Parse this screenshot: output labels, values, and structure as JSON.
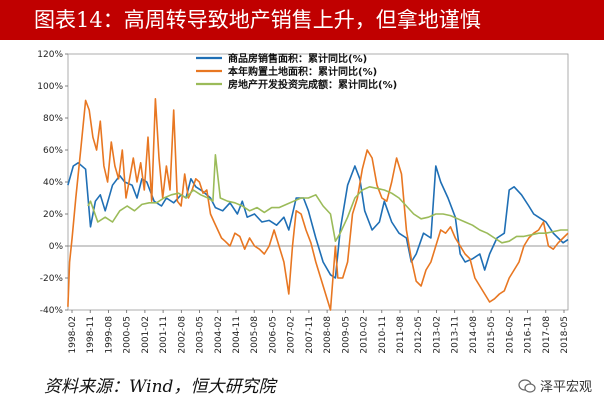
{
  "title": "图表14：高周转导致地产销售上升，但拿地谨慎",
  "source": "资料来源：Wind，恒大研究院",
  "watermark": "泽平宏观",
  "colors": {
    "title_bg": "#c00000",
    "s1": "#1f6fb5",
    "s2": "#e87722",
    "s3": "#9bbb59"
  },
  "chart_data": {
    "type": "line",
    "ylim": [
      -40,
      120
    ],
    "yticks": [
      -40,
      -20,
      0,
      20,
      40,
      60,
      80,
      100,
      120
    ],
    "ytick_labels": [
      "-40%",
      "-20%",
      "0%",
      "20%",
      "40%",
      "60%",
      "80%",
      "100%",
      "120%"
    ],
    "xlim": [
      1998.083,
      2018.5
    ],
    "xtick_labels": [
      "1998-02",
      "1998-11",
      "1999-08",
      "2000-05",
      "2001-02",
      "2001-11",
      "2002-08",
      "2003-05",
      "2004-02",
      "2004-11",
      "2005-08",
      "2006-05",
      "2007-02",
      "2007-11",
      "2008-08",
      "2009-05",
      "2010-02",
      "2010-11",
      "2011-08",
      "2012-05",
      "2013-02",
      "2013-11",
      "2014-08",
      "2015-05",
      "2016-02",
      "2016-11",
      "2017-08",
      "2018-05"
    ],
    "series": [
      {
        "name": "商品房销售面积：累计同比(%)",
        "color": "#1f6fb5",
        "x": [
          1998.08,
          1998.3,
          1998.5,
          1998.8,
          1999.0,
          1999.2,
          1999.4,
          1999.6,
          1999.9,
          2000.2,
          2000.4,
          2000.7,
          2000.9,
          2001.1,
          2001.3,
          2001.6,
          2001.9,
          2002.1,
          2002.4,
          2002.7,
          2002.9,
          2003.1,
          2003.3,
          2003.6,
          2003.9,
          2004.1,
          2004.4,
          2004.7,
          2005.0,
          2005.2,
          2005.4,
          2005.7,
          2006.0,
          2006.3,
          2006.6,
          2006.9,
          2007.1,
          2007.4,
          2007.7,
          2007.9,
          2008.2,
          2008.5,
          2008.8,
          2009.0,
          2009.2,
          2009.5,
          2009.8,
          2010.0,
          2010.2,
          2010.5,
          2010.8,
          2011.0,
          2011.3,
          2011.6,
          2011.9,
          2012.1,
          2012.3,
          2012.6,
          2012.9,
          2013.1,
          2013.3,
          2013.6,
          2013.9,
          2014.1,
          2014.3,
          2014.6,
          2014.9,
          2015.1,
          2015.3,
          2015.6,
          2015.9,
          2016.1,
          2016.3,
          2016.6,
          2016.9,
          2017.1,
          2017.3,
          2017.6,
          2017.9,
          2018.1,
          2018.3,
          2018.5
        ],
        "y": [
          38,
          50,
          52,
          48,
          12,
          28,
          32,
          22,
          38,
          44,
          40,
          38,
          30,
          42,
          40,
          28,
          25,
          30,
          27,
          32,
          30,
          42,
          37,
          34,
          30,
          24,
          22,
          27,
          20,
          28,
          18,
          20,
          15,
          16,
          13,
          18,
          10,
          30,
          30,
          22,
          5,
          -10,
          -18,
          -20,
          10,
          38,
          50,
          42,
          22,
          10,
          15,
          28,
          15,
          8,
          5,
          -10,
          -5,
          8,
          5,
          50,
          40,
          30,
          18,
          -5,
          -10,
          -8,
          -5,
          -15,
          -5,
          5,
          8,
          35,
          37,
          32,
          25,
          20,
          18,
          15,
          8,
          5,
          2,
          4
        ]
      },
      {
        "name": "本年购置土地面积：累计同比(%)",
        "color": "#e87722",
        "x": [
          1998.08,
          1998.15,
          1998.25,
          1998.4,
          1998.6,
          1998.8,
          1998.95,
          1999.1,
          1999.25,
          1999.4,
          1999.55,
          1999.7,
          1999.85,
          2000.0,
          2000.15,
          2000.3,
          2000.45,
          2000.6,
          2000.75,
          2000.9,
          2001.05,
          2001.2,
          2001.35,
          2001.5,
          2001.65,
          2001.8,
          2001.95,
          2002.1,
          2002.25,
          2002.4,
          2002.55,
          2002.7,
          2002.85,
          2003.0,
          2003.15,
          2003.3,
          2003.45,
          2003.6,
          2003.75,
          2003.9,
          2004.05,
          2004.2,
          2004.35,
          2004.5,
          2004.7,
          2004.9,
          2005.1,
          2005.3,
          2005.5,
          2005.7,
          2005.9,
          2006.1,
          2006.3,
          2006.5,
          2006.7,
          2006.9,
          2007.1,
          2007.25,
          2007.4,
          2007.6,
          2007.8,
          2008.0,
          2008.2,
          2008.4,
          2008.6,
          2008.8,
          2009.0,
          2009.1,
          2009.3,
          2009.5,
          2009.7,
          2009.9,
          2010.1,
          2010.3,
          2010.5,
          2010.7,
          2010.9,
          2011.1,
          2011.3,
          2011.5,
          2011.7,
          2011.9,
          2012.1,
          2012.3,
          2012.5,
          2012.7,
          2012.9,
          2013.1,
          2013.3,
          2013.5,
          2013.7,
          2013.9,
          2014.1,
          2014.3,
          2014.5,
          2014.7,
          2014.9,
          2015.1,
          2015.3,
          2015.5,
          2015.7,
          2015.9,
          2016.1,
          2016.3,
          2016.5,
          2016.7,
          2016.9,
          2017.1,
          2017.3,
          2017.5,
          2017.7,
          2017.9,
          2018.1,
          2018.3,
          2018.5
        ],
        "y": [
          -38,
          -10,
          5,
          30,
          60,
          91,
          85,
          68,
          60,
          78,
          50,
          40,
          65,
          50,
          42,
          60,
          30,
          42,
          55,
          40,
          52,
          35,
          68,
          28,
          92,
          55,
          30,
          50,
          35,
          85,
          28,
          25,
          45,
          30,
          35,
          42,
          40,
          33,
          35,
          20,
          15,
          10,
          5,
          3,
          0,
          8,
          6,
          -2,
          5,
          0,
          -2,
          -5,
          0,
          10,
          0,
          -10,
          -30,
          0,
          22,
          20,
          10,
          2,
          -10,
          -20,
          -30,
          -40,
          0,
          -20,
          -20,
          -10,
          20,
          30,
          48,
          60,
          55,
          38,
          30,
          28,
          40,
          55,
          45,
          10,
          -8,
          -22,
          -25,
          -15,
          -10,
          0,
          10,
          8,
          12,
          5,
          0,
          -5,
          -8,
          -20,
          -25,
          -30,
          -35,
          -33,
          -30,
          -28,
          -20,
          -15,
          -10,
          0,
          5,
          8,
          10,
          15,
          0,
          -2,
          2,
          5,
          8
        ]
      },
      {
        "name": "房地产开发投资完成额：累计同比(%)",
        "color": "#9bbb59",
        "x": [
          1998.9,
          1999.0,
          1999.3,
          1999.6,
          1999.9,
          2000.2,
          2000.5,
          2000.8,
          2001.1,
          2001.4,
          2001.7,
          2002.0,
          2002.3,
          2002.6,
          2002.9,
          2003.2,
          2003.5,
          2003.8,
          2004.0,
          2004.1,
          2004.3,
          2004.6,
          2004.9,
          2005.2,
          2005.5,
          2005.8,
          2006.1,
          2006.4,
          2006.7,
          2007.0,
          2007.3,
          2007.6,
          2007.9,
          2008.2,
          2008.5,
          2008.8,
          2009.0,
          2009.2,
          2009.5,
          2009.8,
          2010.1,
          2010.4,
          2010.7,
          2011.0,
          2011.3,
          2011.6,
          2011.9,
          2012.2,
          2012.5,
          2012.8,
          2013.1,
          2013.4,
          2013.7,
          2014.0,
          2014.3,
          2014.6,
          2014.9,
          2015.2,
          2015.5,
          2015.8,
          2016.1,
          2016.4,
          2016.7,
          2017.0,
          2017.3,
          2017.6,
          2017.9,
          2018.2,
          2018.5
        ],
        "y": [
          25,
          28,
          15,
          18,
          15,
          22,
          25,
          22,
          26,
          27,
          27,
          30,
          32,
          33,
          30,
          35,
          32,
          30,
          28,
          57,
          30,
          28,
          27,
          25,
          22,
          24,
          21,
          24,
          24,
          26,
          28,
          30,
          30,
          32,
          25,
          20,
          3,
          8,
          18,
          30,
          35,
          37,
          36,
          35,
          33,
          30,
          25,
          20,
          17,
          18,
          20,
          20,
          19,
          17,
          15,
          13,
          10,
          8,
          5,
          2,
          3,
          6,
          6,
          7,
          8,
          8,
          9,
          10,
          10
        ]
      }
    ]
  }
}
